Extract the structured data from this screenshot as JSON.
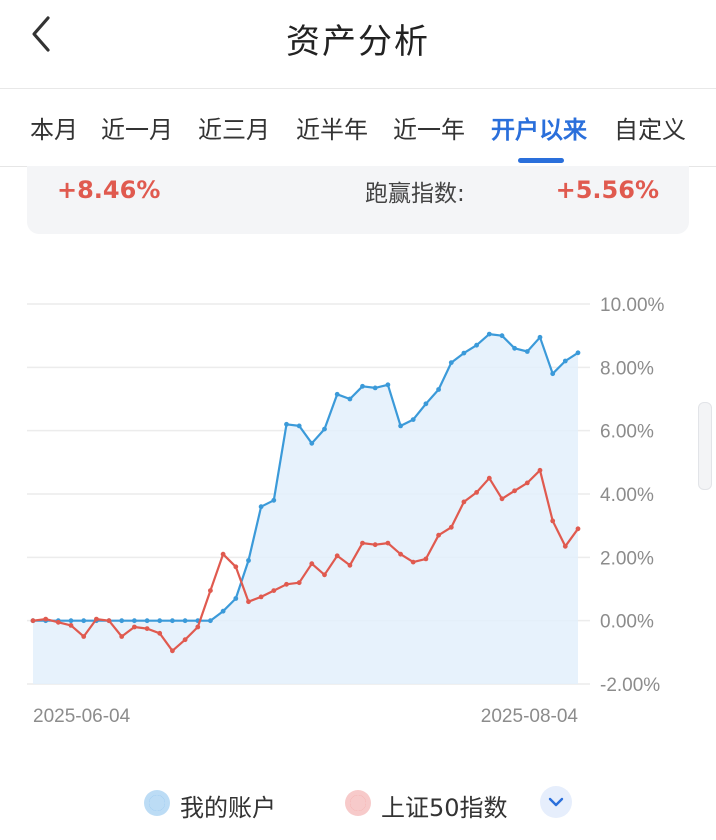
{
  "header": {
    "title": "资产分析",
    "back_icon": "chevron-left-icon"
  },
  "tabs": [
    {
      "label": "本月",
      "active": false
    },
    {
      "label": "近一月",
      "active": false
    },
    {
      "label": "近三月",
      "active": false
    },
    {
      "label": "近半年",
      "active": false
    },
    {
      "label": "近一年",
      "active": false
    },
    {
      "label": "开户以来",
      "active": true
    },
    {
      "label": "自定义",
      "active": false
    }
  ],
  "summary": {
    "return_value": "+8.46%",
    "beat_label": "跑赢指数:",
    "beat_value": "+5.56%"
  },
  "colors": {
    "accent": "#2a6fdb",
    "account": "#3b9ad9",
    "index": "#e05a4f",
    "up": "#e05a4f"
  },
  "chart_data": {
    "type": "line",
    "y_tick_labels": [
      "10.00%",
      "8.00%",
      "6.00%",
      "4.00%",
      "2.00%",
      "0.00%",
      "-2.00%"
    ],
    "ylim": [
      -2,
      10
    ],
    "x_tick_labels": [
      "2025-06-04",
      "2025-08-04"
    ],
    "grid": true,
    "series": [
      {
        "name": "我的账户",
        "color": "#3b9ad9",
        "fill": true,
        "values": [
          0,
          0,
          0,
          0,
          0,
          0,
          0,
          0,
          0,
          0,
          0,
          0,
          0,
          0,
          0,
          0.3,
          0.7,
          1.9,
          3.6,
          3.8,
          6.2,
          6.15,
          5.6,
          6.05,
          7.15,
          7.0,
          7.4,
          7.35,
          7.45,
          6.15,
          6.35,
          6.85,
          7.3,
          8.15,
          8.45,
          8.7,
          9.05,
          9.0,
          8.6,
          8.5,
          8.95,
          7.8,
          8.2,
          8.46
        ]
      },
      {
        "name": "上证50指数",
        "color": "#e05a4f",
        "fill": false,
        "values": [
          0,
          0.05,
          -0.05,
          -0.15,
          -0.5,
          0.05,
          0,
          -0.5,
          -0.2,
          -0.25,
          -0.4,
          -0.95,
          -0.6,
          -0.2,
          0.95,
          2.1,
          1.7,
          0.6,
          0.75,
          0.95,
          1.15,
          1.2,
          1.8,
          1.45,
          2.05,
          1.75,
          2.45,
          2.4,
          2.45,
          2.1,
          1.85,
          1.95,
          2.7,
          2.95,
          3.75,
          4.05,
          4.5,
          3.85,
          4.1,
          4.35,
          4.75,
          3.15,
          2.35,
          2.9
        ]
      }
    ]
  },
  "legend": {
    "items": [
      {
        "label": "我的账户",
        "color": "#3b9ad9"
      },
      {
        "label": "上证50指数",
        "color": "#e05a4f"
      }
    ],
    "expand_icon": "chevron-down-icon"
  }
}
